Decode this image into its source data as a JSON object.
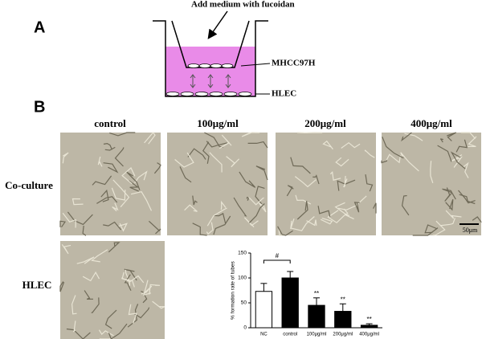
{
  "figure": {
    "panel_a": {
      "label": "A",
      "instruction": "Add medium with fucoidan",
      "upper_cells": "MHCC97H",
      "lower_cells": "HLEC"
    },
    "panel_b": {
      "label": "B",
      "columns": [
        "control",
        "100μg/ml",
        "200μg/ml",
        "400μg/ml"
      ],
      "rows": [
        "Co-culture",
        "HLEC"
      ],
      "scale_bar": "50μm"
    }
  },
  "chart_data": {
    "type": "bar",
    "ylabel": "% formation rate of tubes",
    "categories": [
      "NC",
      "control",
      "100μg/ml",
      "200μg/ml",
      "400μg/ml"
    ],
    "values": [
      73,
      100,
      45,
      33,
      5
    ],
    "errors": [
      16,
      13,
      15,
      15,
      3
    ],
    "colors": [
      "#ffffff",
      "#000000",
      "#000000",
      "#000000",
      "#000000"
    ],
    "annotations": [
      "#",
      "**",
      "**",
      "**"
    ],
    "ylim": [
      0,
      150
    ],
    "yticks": [
      0,
      50,
      100,
      150
    ]
  }
}
